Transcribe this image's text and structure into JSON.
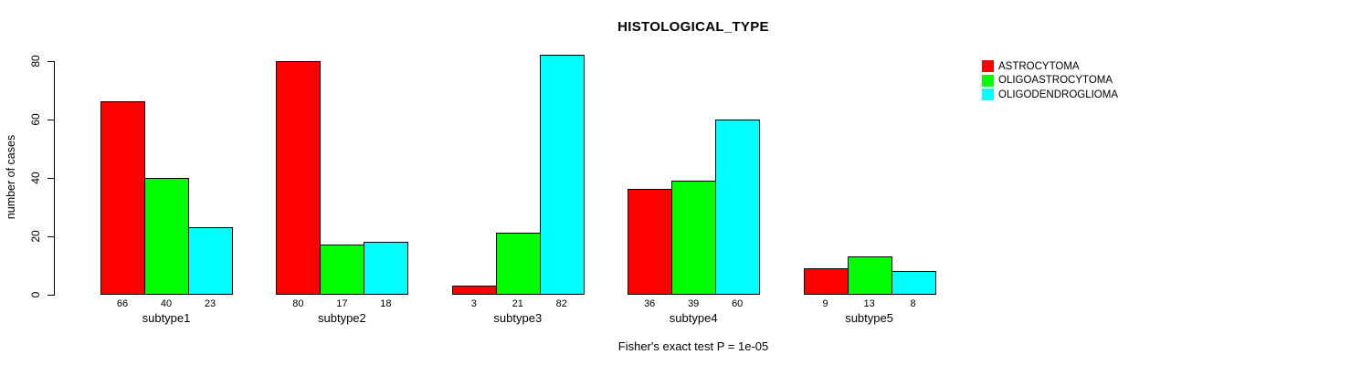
{
  "chart_data": {
    "type": "bar",
    "title": "HISTOLOGICAL_TYPE",
    "ylabel": "number of cases",
    "xlabel": "",
    "footer": "Fisher's exact test P = 1e-05",
    "categories": [
      "subtype1",
      "subtype2",
      "subtype3",
      "subtype4",
      "subtype5"
    ],
    "series": [
      {
        "name": "ASTROCYTOMA",
        "color": "#ff0000",
        "values": [
          66,
          80,
          3,
          36,
          9
        ]
      },
      {
        "name": "OLIGOASTROCYTOMA",
        "color": "#00ff00",
        "values": [
          40,
          17,
          21,
          39,
          13
        ]
      },
      {
        "name": "OLIGODENDROGLIOMA",
        "color": "#00ffff",
        "values": [
          23,
          18,
          82,
          60,
          8
        ]
      }
    ],
    "yticks": [
      0,
      20,
      40,
      60,
      80
    ],
    "ylim": [
      0,
      80
    ],
    "bar_value_labels": true,
    "bar_border_color": "#000000",
    "text_color": "#000000",
    "background_color": "#ffffff",
    "grid": false,
    "legend_position": "top-right"
  }
}
